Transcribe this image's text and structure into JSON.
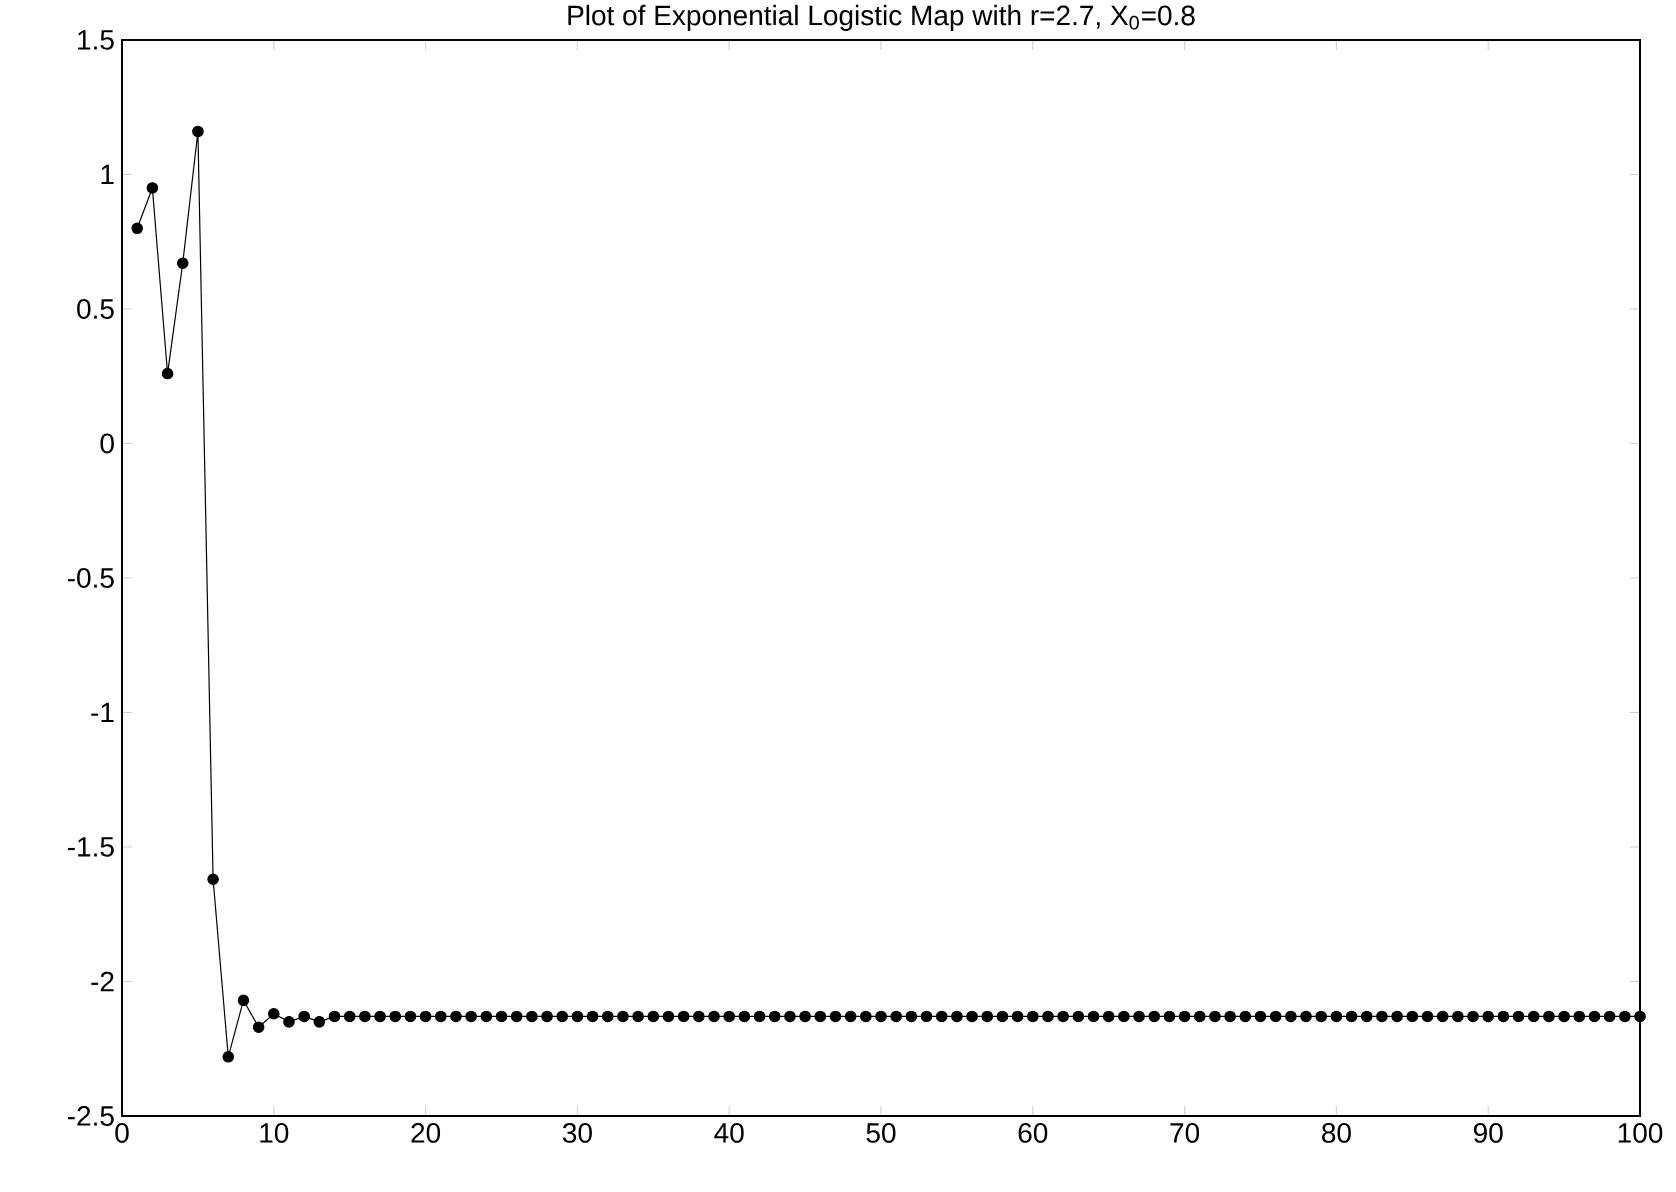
{
  "chart_data": {
    "type": "line",
    "title": "Plot of Exponential Logistic Map with r=2.7, X$_{0}$=0.8",
    "x": [
      1,
      2,
      3,
      4,
      5,
      6,
      7,
      8,
      9,
      10,
      11,
      12,
      13,
      14,
      15,
      16,
      17,
      18,
      19,
      20,
      21,
      22,
      23,
      24,
      25,
      26,
      27,
      28,
      29,
      30,
      31,
      32,
      33,
      34,
      35,
      36,
      37,
      38,
      39,
      40,
      41,
      42,
      43,
      44,
      45,
      46,
      47,
      48,
      49,
      50,
      51,
      52,
      53,
      54,
      55,
      56,
      57,
      58,
      59,
      60,
      61,
      62,
      63,
      64,
      65,
      66,
      67,
      68,
      69,
      70,
      71,
      72,
      73,
      74,
      75,
      76,
      77,
      78,
      79,
      80,
      81,
      82,
      83,
      84,
      85,
      86,
      87,
      88,
      89,
      90,
      91,
      92,
      93,
      94,
      95,
      96,
      97,
      98,
      99,
      100
    ],
    "series": [
      {
        "color": "#000000",
        "values": [
          0.8,
          0.95,
          0.26,
          0.67,
          1.16,
          -1.62,
          -2.28,
          -2.07,
          -2.17,
          -2.12,
          -2.15,
          -2.13,
          -2.15,
          -2.13,
          -2.13,
          -2.13,
          -2.13,
          -2.13,
          -2.13,
          -2.13,
          -2.13,
          -2.13,
          -2.13,
          -2.13,
          -2.13,
          -2.13,
          -2.13,
          -2.13,
          -2.13,
          -2.13,
          -2.13,
          -2.13,
          -2.13,
          -2.13,
          -2.13,
          -2.13,
          -2.13,
          -2.13,
          -2.13,
          -2.13,
          -2.13,
          -2.13,
          -2.13,
          -2.13,
          -2.13,
          -2.13,
          -2.13,
          -2.13,
          -2.13,
          -2.13,
          -2.13,
          -2.13,
          -2.13,
          -2.13,
          -2.13,
          -2.13,
          -2.13,
          -2.13,
          -2.13,
          -2.13,
          -2.13,
          -2.13,
          -2.13,
          -2.13,
          -2.13,
          -2.13,
          -2.13,
          -2.13,
          -2.13,
          -2.13,
          -2.13,
          -2.13,
          -2.13,
          -2.13,
          -2.13,
          -2.13,
          -2.13,
          -2.13,
          -2.13,
          -2.13,
          -2.13,
          -2.13,
          -2.13,
          -2.13,
          -2.13,
          -2.13,
          -2.13,
          -2.13,
          -2.13,
          -2.13,
          -2.13,
          -2.13,
          -2.13,
          -2.13,
          -2.13,
          -2.13,
          -2.13,
          -2.13,
          -2.13,
          -2.13
        ]
      }
    ],
    "xlim": [
      0,
      100
    ],
    "ylim": [
      -2.5,
      1.5
    ],
    "xticks": [
      0,
      10,
      20,
      30,
      40,
      50,
      60,
      70,
      80,
      90,
      100
    ],
    "yticks": [
      -2.5,
      -2,
      -1.5,
      -1,
      -0.5,
      0,
      0.5,
      1,
      1.5
    ],
    "grid": false,
    "marker": "circle",
    "line_style": "solid"
  }
}
